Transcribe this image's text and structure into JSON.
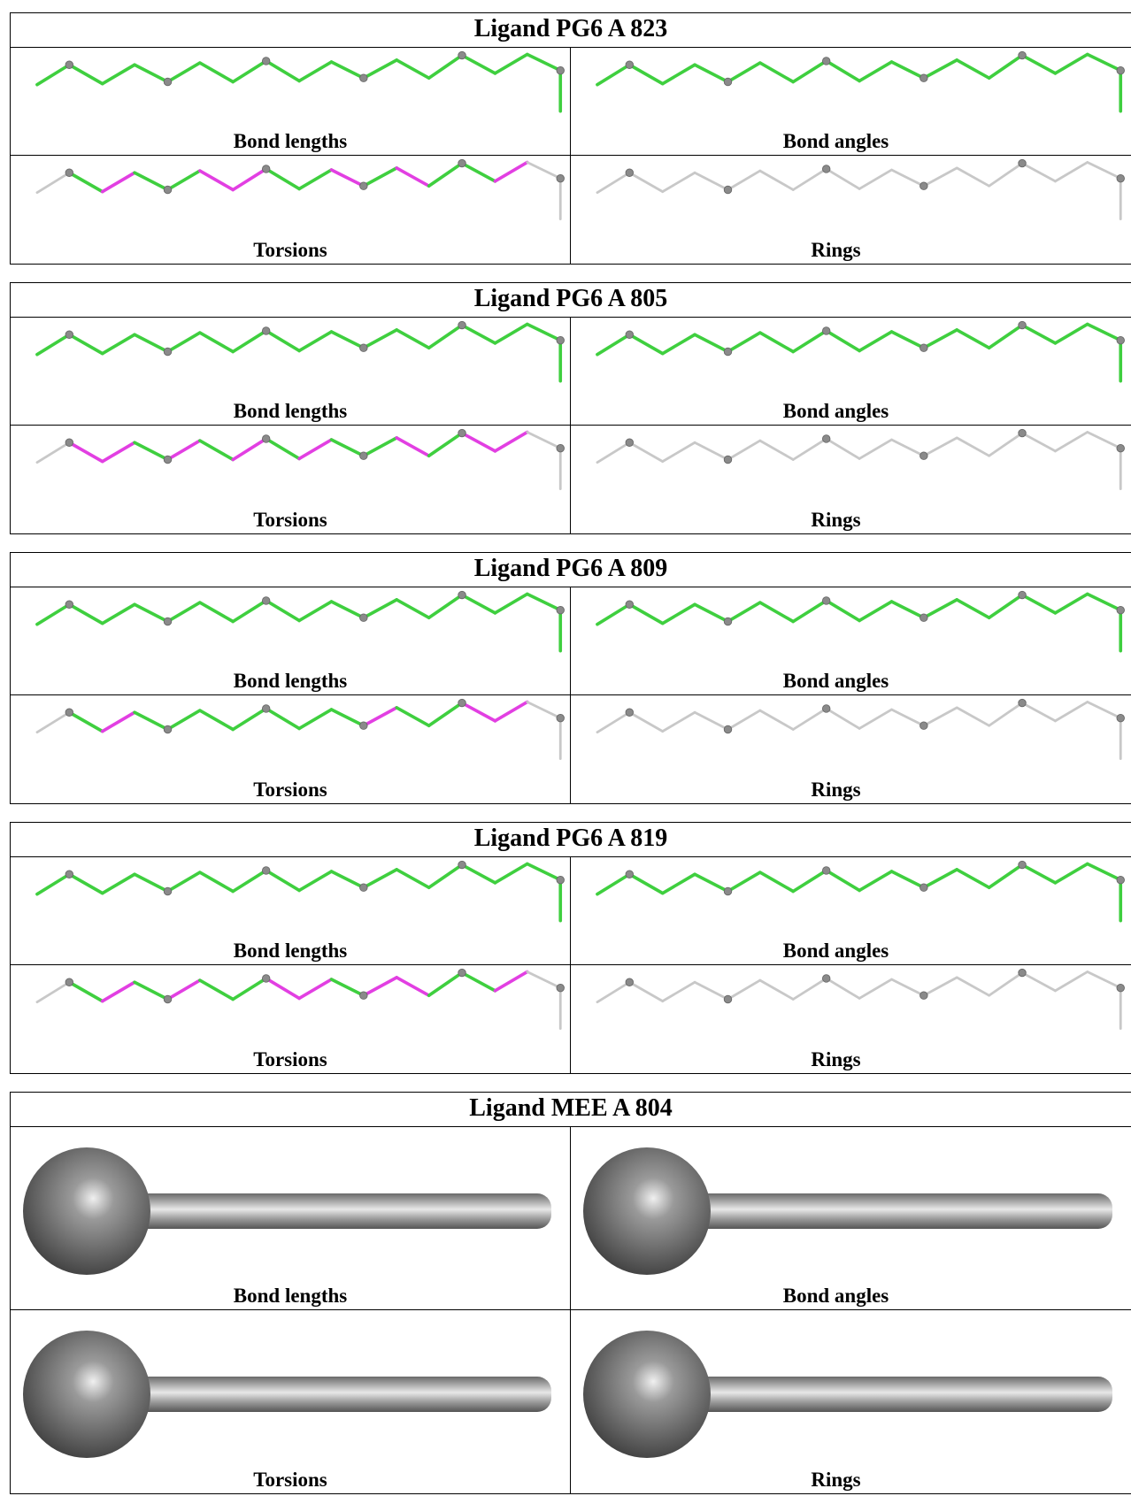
{
  "ligands": [
    {
      "title": "Ligand PG6 A 823",
      "panels": [
        "Bond lengths",
        "Bond angles",
        "Torsions",
        "Rings"
      ]
    },
    {
      "title": "Ligand PG6 A 805",
      "panels": [
        "Bond lengths",
        "Bond angles",
        "Torsions",
        "Rings"
      ]
    },
    {
      "title": "Ligand PG6 A 809",
      "panels": [
        "Bond lengths",
        "Bond angles",
        "Torsions",
        "Rings"
      ]
    },
    {
      "title": "Ligand PG6 A 819",
      "panels": [
        "Bond lengths",
        "Bond angles",
        "Torsions",
        "Rings"
      ]
    },
    {
      "title": "Ligand MEE A 804",
      "panels": [
        "Bond lengths",
        "Bond angles",
        "Torsions",
        "Rings"
      ]
    }
  ]
}
